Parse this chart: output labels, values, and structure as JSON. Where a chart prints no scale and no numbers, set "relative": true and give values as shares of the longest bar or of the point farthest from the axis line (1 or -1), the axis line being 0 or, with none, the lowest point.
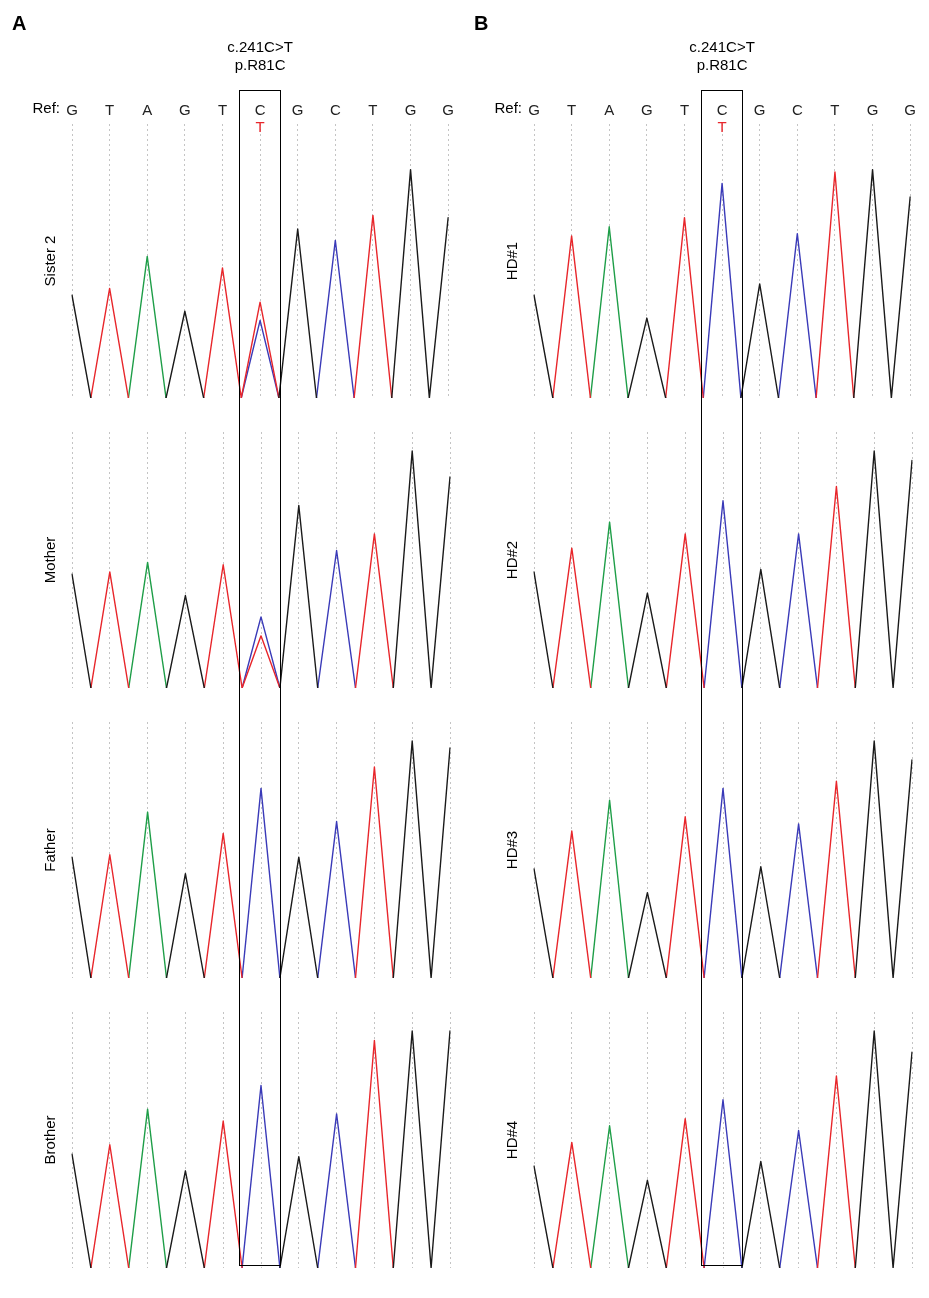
{
  "chart_data": [
    {
      "type": "line",
      "relative": true,
      "ylabel": "Sister 2",
      "annotations": [
        "A",
        "c.241C>T",
        "p.R81C",
        "Ref:",
        "T"
      ],
      "grid": "x",
      "tick_labels": "x",
      "marker": "none",
      "legend": false,
      "categories": [
        "G",
        null,
        "T",
        null,
        "A",
        null,
        "G",
        null,
        "T",
        null,
        "C",
        null,
        "G",
        null,
        "C",
        null,
        "T",
        null,
        "G",
        null,
        "G"
      ],
      "series": [
        {
          "color": "#1a1a1a",
          "values": [
            0.45,
            0,
            null,
            null,
            null,
            0,
            0.38,
            0,
            null,
            null,
            null,
            0,
            0.74,
            0,
            null,
            null,
            null,
            0,
            1,
            0,
            0.79
          ]
        },
        {
          "color": "#e8262b",
          "values": [
            null,
            0,
            0.48,
            0,
            null,
            null,
            null,
            0,
            0.57,
            0,
            0.42,
            0,
            null,
            null,
            null,
            0,
            0.8,
            0,
            null,
            null,
            null
          ]
        },
        {
          "color": "#1e9e48",
          "values": [
            null,
            null,
            null,
            0,
            0.62,
            0,
            null,
            null,
            null,
            null,
            null,
            null,
            null,
            null,
            null,
            null,
            null,
            null,
            null,
            null,
            null
          ]
        },
        {
          "color": "#3a3ab8",
          "values": [
            null,
            null,
            null,
            null,
            null,
            null,
            null,
            null,
            null,
            0,
            0.34,
            0,
            null,
            0,
            0.69,
            0,
            null,
            null,
            null,
            null,
            null
          ]
        }
      ]
    },
    {
      "type": "line",
      "relative": true,
      "ylabel": "Mother",
      "grid": "x",
      "marker": "none",
      "legend": false,
      "categories": [
        null,
        null,
        null,
        null,
        null,
        null,
        null,
        null,
        null,
        null,
        null,
        null,
        null,
        null,
        null,
        null,
        null,
        null,
        null,
        null,
        null
      ],
      "series": [
        {
          "color": "#1a1a1a",
          "values": [
            0.48,
            0,
            null,
            null,
            null,
            0,
            0.39,
            0,
            null,
            null,
            null,
            0,
            0.77,
            0,
            null,
            null,
            null,
            0,
            1,
            0,
            0.89
          ]
        },
        {
          "color": "#e8262b",
          "values": [
            null,
            0,
            0.49,
            0,
            null,
            null,
            null,
            0,
            0.52,
            0,
            0.22,
            0,
            null,
            null,
            null,
            0,
            0.65,
            0,
            null,
            null,
            null
          ]
        },
        {
          "color": "#1e9e48",
          "values": [
            null,
            null,
            null,
            0,
            0.53,
            0,
            null,
            null,
            null,
            null,
            null,
            null,
            null,
            null,
            null,
            null,
            null,
            null,
            null,
            null,
            null
          ]
        },
        {
          "color": "#3a3ab8",
          "values": [
            null,
            null,
            null,
            null,
            null,
            null,
            null,
            null,
            null,
            0,
            0.3,
            0,
            null,
            0,
            0.58,
            0,
            null,
            null,
            null,
            null,
            null
          ]
        }
      ]
    },
    {
      "type": "line",
      "relative": true,
      "ylabel": "Father",
      "grid": "x",
      "marker": "none",
      "legend": false,
      "categories": [
        null,
        null,
        null,
        null,
        null,
        null,
        null,
        null,
        null,
        null,
        null,
        null,
        null,
        null,
        null,
        null,
        null,
        null,
        null,
        null,
        null
      ],
      "series": [
        {
          "color": "#1a1a1a",
          "values": [
            0.51,
            0,
            null,
            null,
            null,
            0,
            0.44,
            0,
            null,
            null,
            null,
            0,
            0.51,
            0,
            null,
            null,
            null,
            0,
            1,
            0,
            0.97
          ]
        },
        {
          "color": "#e8262b",
          "values": [
            null,
            0,
            0.52,
            0,
            null,
            null,
            null,
            0,
            0.61,
            0,
            null,
            null,
            null,
            null,
            null,
            0,
            0.89,
            0,
            null,
            null,
            null
          ]
        },
        {
          "color": "#1e9e48",
          "values": [
            null,
            null,
            null,
            0,
            0.7,
            0,
            null,
            null,
            null,
            null,
            null,
            null,
            null,
            null,
            null,
            null,
            null,
            null,
            null,
            null,
            null
          ]
        },
        {
          "color": "#3a3ab8",
          "values": [
            null,
            null,
            null,
            null,
            null,
            null,
            null,
            null,
            null,
            0,
            0.8,
            0,
            null,
            0,
            0.66,
            0,
            null,
            null,
            null,
            null,
            null
          ]
        }
      ]
    },
    {
      "type": "line",
      "relative": true,
      "ylabel": "Brother",
      "grid": "x",
      "marker": "none",
      "legend": false,
      "categories": [
        null,
        null,
        null,
        null,
        null,
        null,
        null,
        null,
        null,
        null,
        null,
        null,
        null,
        null,
        null,
        null,
        null,
        null,
        null,
        null,
        null
      ],
      "series": [
        {
          "color": "#1a1a1a",
          "values": [
            0.48,
            0,
            null,
            null,
            null,
            0,
            0.41,
            0,
            null,
            null,
            null,
            0,
            0.47,
            0,
            null,
            null,
            null,
            0,
            1,
            0,
            1
          ]
        },
        {
          "color": "#e8262b",
          "values": [
            null,
            0,
            0.52,
            0,
            null,
            null,
            null,
            0,
            0.62,
            0,
            null,
            null,
            null,
            null,
            null,
            0,
            0.96,
            0,
            null,
            null,
            null
          ]
        },
        {
          "color": "#1e9e48",
          "values": [
            null,
            null,
            null,
            0,
            0.67,
            0,
            null,
            null,
            null,
            null,
            null,
            null,
            null,
            null,
            null,
            null,
            null,
            null,
            null,
            null,
            null
          ]
        },
        {
          "color": "#3a3ab8",
          "values": [
            null,
            null,
            null,
            null,
            null,
            null,
            null,
            null,
            null,
            0,
            0.77,
            0,
            null,
            0,
            0.65,
            0,
            null,
            null,
            null,
            null,
            null
          ]
        }
      ]
    },
    {
      "type": "line",
      "relative": true,
      "ylabel": "HD#1",
      "annotations": [
        "B",
        "c.241C>T",
        "p.R81C",
        "Ref:",
        "T"
      ],
      "grid": "x",
      "tick_labels": "x",
      "marker": "none",
      "legend": false,
      "categories": [
        "G",
        null,
        "T",
        null,
        "A",
        null,
        "G",
        null,
        "T",
        null,
        "C",
        null,
        "G",
        null,
        "C",
        null,
        "T",
        null,
        "G",
        null,
        "G"
      ],
      "series": [
        {
          "color": "#1a1a1a",
          "values": [
            0.45,
            0,
            null,
            null,
            null,
            0,
            0.35,
            0,
            null,
            null,
            null,
            0,
            0.5,
            0,
            null,
            null,
            null,
            0,
            1,
            0,
            0.88
          ]
        },
        {
          "color": "#e8262b",
          "values": [
            null,
            0,
            0.71,
            0,
            null,
            null,
            null,
            0,
            0.79,
            0,
            null,
            null,
            null,
            null,
            null,
            0,
            0.99,
            0,
            null,
            null,
            null
          ]
        },
        {
          "color": "#1e9e48",
          "values": [
            null,
            null,
            null,
            0,
            0.75,
            0,
            null,
            null,
            null,
            null,
            null,
            null,
            null,
            null,
            null,
            null,
            null,
            null,
            null,
            null,
            null
          ]
        },
        {
          "color": "#3a3ab8",
          "values": [
            null,
            null,
            null,
            null,
            null,
            null,
            null,
            null,
            null,
            0,
            0.94,
            0,
            null,
            0,
            0.72,
            0,
            null,
            null,
            null,
            null,
            null
          ]
        }
      ]
    },
    {
      "type": "line",
      "relative": true,
      "ylabel": "HD#2",
      "grid": "x",
      "marker": "none",
      "legend": false,
      "categories": [
        null,
        null,
        null,
        null,
        null,
        null,
        null,
        null,
        null,
        null,
        null,
        null,
        null,
        null,
        null,
        null,
        null,
        null,
        null,
        null,
        null
      ],
      "series": [
        {
          "color": "#1a1a1a",
          "values": [
            0.49,
            0,
            null,
            null,
            null,
            0,
            0.4,
            0,
            null,
            null,
            null,
            0,
            0.5,
            0,
            null,
            null,
            null,
            0,
            1,
            0,
            0.96
          ]
        },
        {
          "color": "#e8262b",
          "values": [
            null,
            0,
            0.59,
            0,
            null,
            null,
            null,
            0,
            0.65,
            0,
            null,
            null,
            null,
            null,
            null,
            0,
            0.85,
            0,
            null,
            null,
            null
          ]
        },
        {
          "color": "#1e9e48",
          "values": [
            null,
            null,
            null,
            0,
            0.7,
            0,
            null,
            null,
            null,
            null,
            null,
            null,
            null,
            null,
            null,
            null,
            null,
            null,
            null,
            null,
            null
          ]
        },
        {
          "color": "#3a3ab8",
          "values": [
            null,
            null,
            null,
            null,
            null,
            null,
            null,
            null,
            null,
            0,
            0.79,
            0,
            null,
            0,
            0.65,
            0,
            null,
            null,
            null,
            null,
            null
          ]
        }
      ]
    },
    {
      "type": "line",
      "relative": true,
      "ylabel": "HD#3",
      "grid": "x",
      "marker": "none",
      "legend": false,
      "categories": [
        null,
        null,
        null,
        null,
        null,
        null,
        null,
        null,
        null,
        null,
        null,
        null,
        null,
        null,
        null,
        null,
        null,
        null,
        null,
        null,
        null
      ],
      "series": [
        {
          "color": "#1a1a1a",
          "values": [
            0.46,
            0,
            null,
            null,
            null,
            0,
            0.36,
            0,
            null,
            null,
            null,
            0,
            0.47,
            0,
            null,
            null,
            null,
            0,
            1,
            0,
            0.92
          ]
        },
        {
          "color": "#e8262b",
          "values": [
            null,
            0,
            0.62,
            0,
            null,
            null,
            null,
            0,
            0.68,
            0,
            null,
            null,
            null,
            null,
            null,
            0,
            0.83,
            0,
            null,
            null,
            null
          ]
        },
        {
          "color": "#1e9e48",
          "values": [
            null,
            null,
            null,
            0,
            0.75,
            0,
            null,
            null,
            null,
            null,
            null,
            null,
            null,
            null,
            null,
            null,
            null,
            null,
            null,
            null,
            null
          ]
        },
        {
          "color": "#3a3ab8",
          "values": [
            null,
            null,
            null,
            null,
            null,
            null,
            null,
            null,
            null,
            0,
            0.8,
            0,
            null,
            0,
            0.65,
            0,
            null,
            null,
            null,
            null,
            null
          ]
        }
      ]
    },
    {
      "type": "line",
      "relative": true,
      "ylabel": "HD#4",
      "grid": "x",
      "marker": "none",
      "legend": false,
      "categories": [
        null,
        null,
        null,
        null,
        null,
        null,
        null,
        null,
        null,
        null,
        null,
        null,
        null,
        null,
        null,
        null,
        null,
        null,
        null,
        null,
        null
      ],
      "series": [
        {
          "color": "#1a1a1a",
          "values": [
            0.43,
            0,
            null,
            null,
            null,
            0,
            0.37,
            0,
            null,
            null,
            null,
            0,
            0.45,
            0,
            null,
            null,
            null,
            0,
            1,
            0,
            0.91
          ]
        },
        {
          "color": "#e8262b",
          "values": [
            null,
            0,
            0.53,
            0,
            null,
            null,
            null,
            0,
            0.63,
            0,
            null,
            null,
            null,
            null,
            null,
            0,
            0.81,
            0,
            null,
            null,
            null
          ]
        },
        {
          "color": "#1e9e48",
          "values": [
            null,
            null,
            null,
            0,
            0.6,
            0,
            null,
            null,
            null,
            null,
            null,
            null,
            null,
            null,
            null,
            null,
            null,
            null,
            null,
            null,
            null
          ]
        },
        {
          "color": "#3a3ab8",
          "values": [
            null,
            null,
            null,
            null,
            null,
            null,
            null,
            null,
            null,
            0,
            0.71,
            0,
            null,
            0,
            0.58,
            0,
            null,
            null,
            null,
            null,
            null
          ]
        }
      ]
    }
  ]
}
